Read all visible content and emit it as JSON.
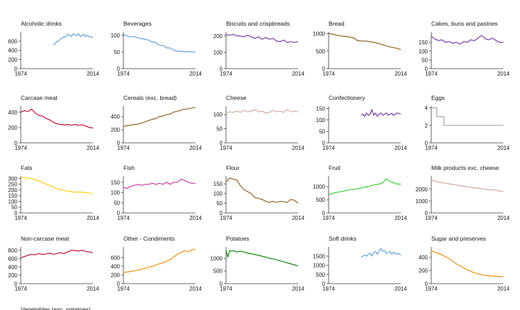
{
  "x_start_label": "1974",
  "x_end_label": "2014",
  "chart_data": [
    {
      "type": "line",
      "title": "Alcoholic drinks",
      "color": "#5b9bd5",
      "xlim": [
        1974,
        2014
      ],
      "ylim": [
        0,
        800
      ],
      "yticks": [
        0,
        200,
        400,
        600
      ],
      "x": [
        1992,
        1993,
        1994,
        1995,
        1996,
        1997,
        1998,
        1999,
        2000,
        2001,
        2002,
        2003,
        2004,
        2005,
        2006,
        2007,
        2008,
        2009,
        2010,
        2011,
        2012,
        2013,
        2014
      ],
      "y": [
        520,
        540,
        590,
        600,
        650,
        660,
        700,
        690,
        750,
        730,
        700,
        760,
        740,
        720,
        760,
        700,
        720,
        750,
        700,
        720,
        700,
        690,
        680
      ]
    },
    {
      "type": "line",
      "title": "Beverages",
      "color": "#5b9bd5",
      "xlim": [
        1974,
        2014
      ],
      "ylim": [
        0,
        110
      ],
      "yticks": [
        0,
        50,
        100
      ],
      "x": [
        1974,
        1976,
        1978,
        1980,
        1982,
        1984,
        1986,
        1988,
        1990,
        1992,
        1994,
        1996,
        1998,
        2000,
        2002,
        2004,
        2006,
        2008,
        2010,
        2012,
        2014
      ],
      "y": [
        102,
        98,
        95,
        96,
        92,
        90,
        88,
        85,
        80,
        78,
        70,
        70,
        62,
        62,
        55,
        52,
        52,
        50,
        51,
        50,
        49
      ]
    },
    {
      "type": "line",
      "title": "Biscuits and crispbreads",
      "color": "#7030a0",
      "xlim": [
        1974,
        2014
      ],
      "ylim": [
        0,
        225
      ],
      "yticks": [
        0,
        100,
        200
      ],
      "x": [
        1974,
        1976,
        1978,
        1980,
        1982,
        1984,
        1986,
        1988,
        1990,
        1992,
        1994,
        1996,
        1998,
        2000,
        2002,
        2004,
        2006,
        2008,
        2010,
        2012,
        2014
      ],
      "y": [
        208,
        205,
        210,
        200,
        200,
        195,
        205,
        195,
        185,
        195,
        180,
        190,
        180,
        185,
        170,
        165,
        175,
        160,
        165,
        160,
        165
      ]
    },
    {
      "type": "line",
      "title": "Bread",
      "color": "#8b5a1b",
      "xlim": [
        1974,
        2014
      ],
      "ylim": [
        0,
        1050
      ],
      "yticks": [
        0,
        500,
        1000
      ],
      "x": [
        1974,
        1976,
        1978,
        1980,
        1982,
        1984,
        1986,
        1988,
        1990,
        1992,
        1994,
        1996,
        1998,
        2000,
        2002,
        2004,
        2006,
        2008,
        2010,
        2012,
        2014
      ],
      "y": [
        1000,
        990,
        960,
        940,
        930,
        920,
        900,
        880,
        800,
        790,
        790,
        780,
        760,
        740,
        720,
        680,
        650,
        620,
        600,
        580,
        540
      ]
    },
    {
      "type": "line",
      "title": "Cakes, buns and pastries",
      "color": "#7030a0",
      "xlim": [
        1974,
        2014
      ],
      "ylim": [
        0,
        210
      ],
      "yticks": [
        0,
        50,
        100,
        150
      ],
      "x": [
        1974,
        1976,
        1978,
        1980,
        1982,
        1984,
        1986,
        1988,
        1990,
        1992,
        1994,
        1996,
        1998,
        2000,
        2002,
        2004,
        2006,
        2008,
        2010,
        2012,
        2014
      ],
      "y": [
        185,
        170,
        160,
        165,
        150,
        155,
        145,
        150,
        140,
        155,
        150,
        165,
        160,
        175,
        190,
        170,
        165,
        175,
        160,
        150,
        150
      ]
    },
    {
      "type": "line",
      "title": "Carcase meat",
      "color": "#c00030",
      "xlim": [
        1974,
        2014
      ],
      "ylim": [
        0,
        480
      ],
      "yticks": [
        0,
        200,
        400
      ],
      "x": [
        1974,
        1976,
        1978,
        1980,
        1982,
        1984,
        1986,
        1988,
        1990,
        1992,
        1994,
        1996,
        1998,
        2000,
        2002,
        2004,
        2006,
        2008,
        2010,
        2012,
        2014
      ],
      "y": [
        400,
        420,
        410,
        440,
        390,
        360,
        350,
        320,
        300,
        270,
        250,
        240,
        235,
        240,
        230,
        240,
        230,
        235,
        220,
        200,
        195
      ]
    },
    {
      "type": "line",
      "title": "Cereals (exc. bread)",
      "color": "#8b5a1b",
      "xlim": [
        1974,
        2014
      ],
      "ylim": [
        0,
        560
      ],
      "yticks": [
        0,
        200,
        400
      ],
      "x": [
        1974,
        1976,
        1978,
        1980,
        1982,
        1984,
        1986,
        1988,
        1990,
        1992,
        1994,
        1996,
        1998,
        2000,
        2002,
        2004,
        2006,
        2008,
        2010,
        2012,
        2014
      ],
      "y": [
        250,
        260,
        270,
        280,
        285,
        300,
        320,
        340,
        360,
        370,
        400,
        410,
        430,
        440,
        470,
        480,
        500,
        510,
        520,
        530,
        540
      ]
    },
    {
      "type": "line",
      "title": "Cheese",
      "color": "#c8a89a",
      "xlim": [
        1974,
        2014
      ],
      "ylim": [
        0,
        130
      ],
      "yticks": [
        0,
        50,
        100
      ],
      "x": [
        1974,
        1976,
        1978,
        1980,
        1982,
        1984,
        1986,
        1988,
        1990,
        1992,
        1994,
        1996,
        1998,
        2000,
        2002,
        2004,
        2006,
        2008,
        2010,
        2012,
        2014
      ],
      "y": [
        105,
        110,
        108,
        112,
        108,
        115,
        110,
        112,
        118,
        110,
        112,
        105,
        108,
        115,
        110,
        112,
        108,
        118,
        110,
        112,
        110
      ]
    },
    {
      "type": "line",
      "title": "Confectionery",
      "color": "#7030a0",
      "xlim": [
        1974,
        2014
      ],
      "ylim": [
        0,
        160
      ],
      "yticks": [
        0,
        50,
        100,
        150
      ],
      "x": [
        1992,
        1993,
        1994,
        1995,
        1996,
        1997,
        1998,
        1999,
        2000,
        2001,
        2002,
        2003,
        2004,
        2005,
        2006,
        2007,
        2008,
        2009,
        2010,
        2011,
        2012,
        2013,
        2014
      ],
      "y": [
        120,
        125,
        115,
        130,
        120,
        125,
        145,
        120,
        130,
        115,
        125,
        130,
        120,
        125,
        130,
        120,
        125,
        128,
        120,
        125,
        130,
        128,
        126
      ]
    },
    {
      "type": "line",
      "title": "Eggs",
      "color": "#a0a0a0",
      "xlim": [
        1974,
        2014
      ],
      "ylim": [
        0,
        4.2
      ],
      "yticks": [
        0,
        2,
        4
      ],
      "x": [
        1974,
        1977,
        1977,
        1981,
        1981,
        2014
      ],
      "y": [
        4,
        4,
        3,
        3,
        2,
        2
      ]
    },
    {
      "type": "line",
      "title": "Fats",
      "color": "#ffcc00",
      "xlim": [
        1974,
        2014
      ],
      "ylim": [
        0,
        320
      ],
      "yticks": [
        0,
        50,
        100,
        150,
        200,
        250,
        300
      ],
      "x": [
        1974,
        1976,
        1978,
        1980,
        1982,
        1984,
        1986,
        1988,
        1990,
        1992,
        1994,
        1996,
        1998,
        2000,
        2002,
        2004,
        2006,
        2008,
        2010,
        2012,
        2014
      ],
      "y": [
        305,
        310,
        300,
        300,
        290,
        280,
        265,
        250,
        240,
        225,
        210,
        205,
        195,
        190,
        185,
        180,
        182,
        180,
        178,
        175,
        160
      ]
    },
    {
      "type": "line",
      "title": "Fish",
      "color": "#c830a0",
      "xlim": [
        1974,
        2014
      ],
      "ylim": [
        0,
        180
      ],
      "yticks": [
        0,
        50,
        100,
        150
      ],
      "x": [
        1974,
        1976,
        1978,
        1980,
        1982,
        1984,
        1986,
        1988,
        1990,
        1992,
        1994,
        1996,
        1998,
        2000,
        2002,
        2004,
        2006,
        2008,
        2010,
        2012,
        2014
      ],
      "y": [
        125,
        120,
        130,
        135,
        140,
        135,
        140,
        140,
        145,
        140,
        145,
        140,
        150,
        140,
        150,
        150,
        165,
        160,
        150,
        145,
        145
      ]
    },
    {
      "type": "line",
      "title": "Flour",
      "color": "#8b5a1b",
      "xlim": [
        1974,
        2014
      ],
      "ylim": [
        0,
        190
      ],
      "yticks": [
        0,
        50,
        100,
        150
      ],
      "x": [
        1974,
        1976,
        1978,
        1980,
        1982,
        1984,
        1986,
        1988,
        1990,
        1992,
        1994,
        1996,
        1998,
        2000,
        2002,
        2004,
        2006,
        2008,
        2010,
        2012,
        2014
      ],
      "y": [
        160,
        180,
        175,
        170,
        140,
        120,
        110,
        100,
        80,
        75,
        70,
        60,
        55,
        60,
        55,
        60,
        58,
        55,
        70,
        65,
        50
      ]
    },
    {
      "type": "line",
      "title": "Fruit",
      "color": "#33cc33",
      "xlim": [
        1974,
        2014
      ],
      "ylim": [
        0,
        1400
      ],
      "yticks": [
        0,
        500,
        1000
      ],
      "x": [
        1974,
        1976,
        1978,
        1980,
        1982,
        1984,
        1986,
        1988,
        1990,
        1992,
        1994,
        1996,
        1998,
        2000,
        2002,
        2004,
        2006,
        2008,
        2010,
        2012,
        2014
      ],
      "y": [
        700,
        740,
        780,
        800,
        820,
        860,
        880,
        900,
        920,
        950,
        980,
        1000,
        1050,
        1080,
        1100,
        1150,
        1300,
        1200,
        1150,
        1100,
        1100
      ]
    },
    {
      "type": "line",
      "title": "Milk products exc. cheese",
      "color": "#c8a89a",
      "xlim": [
        1974,
        2014
      ],
      "ylim": [
        0,
        3100
      ],
      "yticks": [
        0,
        1000,
        2000
      ],
      "x": [
        1974,
        1976,
        1978,
        1980,
        1982,
        1984,
        1986,
        1988,
        1990,
        1992,
        1994,
        1996,
        1998,
        2000,
        2002,
        2004,
        2006,
        2008,
        2010,
        2012,
        2014
      ],
      "y": [
        2800,
        2700,
        2600,
        2550,
        2500,
        2450,
        2400,
        2350,
        2300,
        2250,
        2200,
        2150,
        2100,
        2100,
        2050,
        2000,
        1950,
        1950,
        1900,
        1850,
        1800
      ]
    },
    {
      "type": "line",
      "title": "Non-carcase meat",
      "color": "#c00030",
      "xlim": [
        1974,
        2014
      ],
      "ylim": [
        0,
        880
      ],
      "yticks": [
        0,
        200,
        400,
        600,
        800
      ],
      "x": [
        1974,
        1976,
        1978,
        1980,
        1982,
        1984,
        1986,
        1988,
        1990,
        1992,
        1994,
        1996,
        1998,
        2000,
        2002,
        2004,
        2006,
        2008,
        2010,
        2012,
        2014
      ],
      "y": [
        620,
        650,
        680,
        700,
        690,
        720,
        700,
        710,
        730,
        700,
        720,
        740,
        720,
        760,
        800,
        790,
        780,
        800,
        770,
        760,
        740
      ]
    },
    {
      "type": "line",
      "title": "Other - Condiments",
      "color": "#ee8800",
      "xlim": [
        1974,
        2014
      ],
      "ylim": [
        0,
        850
      ],
      "yticks": [
        0,
        200,
        400,
        600
      ],
      "x": [
        1974,
        1976,
        1978,
        1980,
        1982,
        1984,
        1986,
        1988,
        1990,
        1992,
        1994,
        1996,
        1998,
        2000,
        2002,
        2004,
        2006,
        2008,
        2010,
        2012,
        2014
      ],
      "y": [
        260,
        270,
        280,
        300,
        310,
        330,
        360,
        380,
        400,
        430,
        460,
        480,
        520,
        560,
        620,
        680,
        720,
        760,
        740,
        780,
        800
      ]
    },
    {
      "type": "line",
      "title": "Potatoes",
      "color": "#008000",
      "xlim": [
        1974,
        2014
      ],
      "ylim": [
        0,
        1450
      ],
      "yticks": [
        0,
        500,
        1000
      ],
      "x": [
        1974,
        1975,
        1976,
        1977,
        1978,
        1980,
        1982,
        1984,
        1986,
        1988,
        1990,
        1992,
        1994,
        1996,
        1998,
        2000,
        2002,
        2004,
        2006,
        2008,
        2010,
        2012,
        2014
      ],
      "y": [
        1300,
        1050,
        1300,
        1280,
        1300,
        1250,
        1280,
        1250,
        1200,
        1180,
        1150,
        1120,
        1080,
        1050,
        1000,
        980,
        940,
        900,
        860,
        820,
        780,
        740,
        700
      ]
    },
    {
      "type": "line",
      "title": "Soft drinks",
      "color": "#5b9bd5",
      "xlim": [
        1974,
        2014
      ],
      "ylim": [
        0,
        2000
      ],
      "yticks": [
        0,
        500,
        1000,
        1500
      ],
      "x": [
        1992,
        1993,
        1994,
        1995,
        1996,
        1997,
        1998,
        1999,
        2000,
        2001,
        2002,
        2003,
        2004,
        2005,
        2006,
        2007,
        2008,
        2009,
        2010,
        2011,
        2012,
        2013,
        2014
      ],
      "y": [
        1450,
        1500,
        1550,
        1500,
        1600,
        1650,
        1500,
        1700,
        1750,
        1600,
        1800,
        1900,
        1750,
        1800,
        1650,
        1700,
        1750,
        1600,
        1700,
        1650,
        1600,
        1650,
        1550
      ]
    },
    {
      "type": "line",
      "title": "Sugar and preserves",
      "color": "#ee8800",
      "xlim": [
        1974,
        2014
      ],
      "ylim": [
        0,
        560
      ],
      "yticks": [
        0,
        200,
        400
      ],
      "x": [
        1974,
        1976,
        1978,
        1980,
        1982,
        1984,
        1986,
        1988,
        1990,
        1992,
        1994,
        1996,
        1998,
        2000,
        2002,
        2004,
        2006,
        2008,
        2010,
        2012,
        2014
      ],
      "y": [
        500,
        480,
        460,
        440,
        410,
        380,
        340,
        300,
        270,
        240,
        210,
        185,
        165,
        150,
        135,
        125,
        120,
        115,
        112,
        110,
        108
      ]
    },
    {
      "type": "line",
      "title": "Vegetables (exc. potatoes)",
      "color": "#33cc33",
      "xlim": [
        1974,
        2014
      ],
      "ylim": [
        0,
        1200
      ],
      "yticks": [],
      "x": [],
      "y": []
    }
  ]
}
